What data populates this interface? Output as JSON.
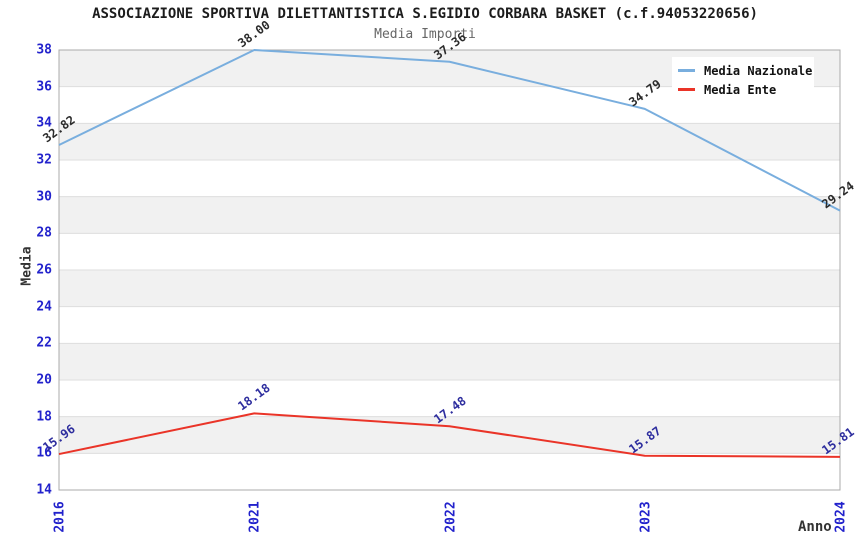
{
  "chart_data": {
    "type": "line",
    "title": "ASSOCIAZIONE SPORTIVA DILETTANTISTICA S.EGIDIO CORBARA BASKET (c.f.94053220656)",
    "subtitle": "Media Importi",
    "xlabel": "Anno",
    "ylabel": "Media",
    "categories": [
      "2016",
      "2021",
      "2022",
      "2023",
      "2024"
    ],
    "series": [
      {
        "name": "Media Nazionale",
        "color": "#79aede",
        "label_color": "#2b2b2b",
        "values": [
          32.82,
          38.0,
          37.36,
          34.79,
          29.24
        ]
      },
      {
        "name": "Media Ente",
        "color": "#ea3428",
        "label_color": "#2d2d9e",
        "values": [
          15.96,
          18.18,
          17.48,
          15.87,
          15.81
        ]
      }
    ],
    "ylim": [
      14,
      38
    ],
    "ytick_step": 2,
    "tick_label_color": "#2222cc",
    "grid": "horizontal-banded-rows",
    "band_color": "#f1f1f1",
    "gridline_color": "#dedede",
    "border_color": "#ababab",
    "legend_position": "top-right",
    "value_label_format": "0.00"
  }
}
